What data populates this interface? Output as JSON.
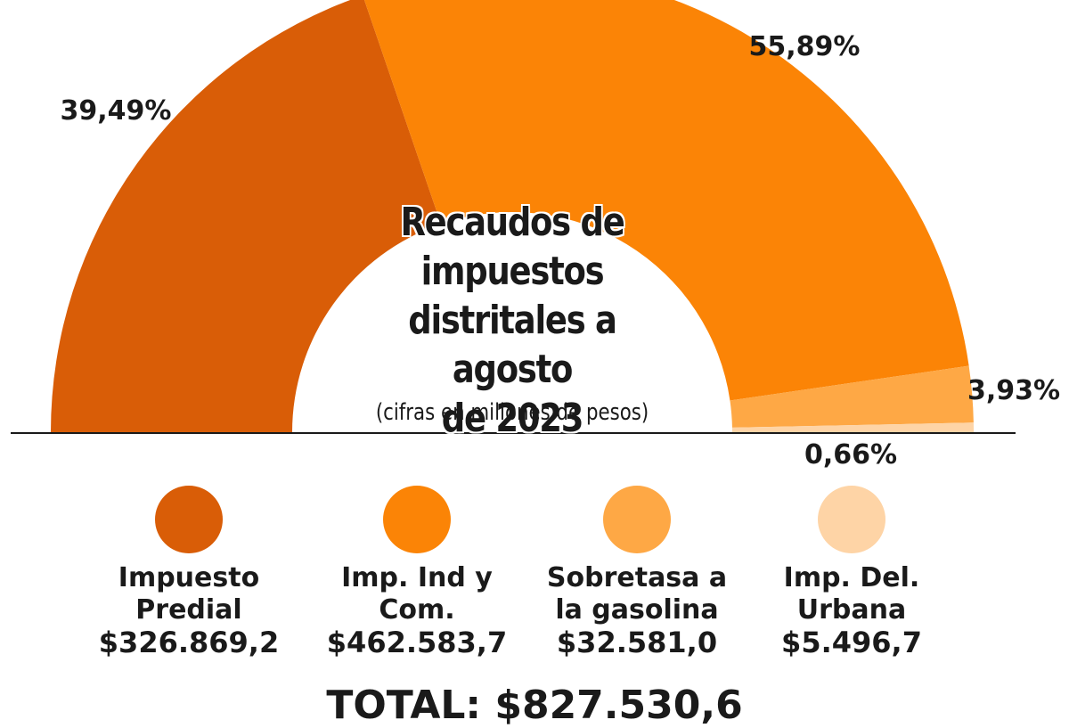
{
  "chart_data": {
    "type": "pie",
    "title_lines": [
      "Recaudos de",
      "impuestos",
      "distritales a agosto",
      "de 2023"
    ],
    "subtitle": "(cifras en millones de pesos)",
    "slices": [
      {
        "name": "Impuesto Predial",
        "name_lines": "Impuesto\nPredial",
        "value": 326869.2,
        "value_label": "$326.869,2",
        "percent": 39.49,
        "percent_label": "39,49%",
        "color": "#d95d07"
      },
      {
        "name": "Imp. Ind y Com.",
        "name_lines": "Imp. Ind y\nCom.",
        "value": 462583.7,
        "value_label": "$462.583,7",
        "percent": 55.89,
        "percent_label": "55,89%",
        "color": "#fb8406"
      },
      {
        "name": "Sobretasa a la gasolina",
        "name_lines": "Sobretasa a\nla gasolina",
        "value": 32581.0,
        "value_label": "$32.581,0",
        "percent": 3.93,
        "percent_label": "3,93%",
        "color": "#fea845"
      },
      {
        "name": "Imp. Del. Urbana",
        "name_lines": "Imp. Del.\nUrbana",
        "value": 5496.7,
        "value_label": "$5.496,7",
        "percent": 0.66,
        "percent_label": "0,66%",
        "color": "#fed4a6"
      }
    ],
    "total_label": "TOTAL: $827.530,6"
  }
}
